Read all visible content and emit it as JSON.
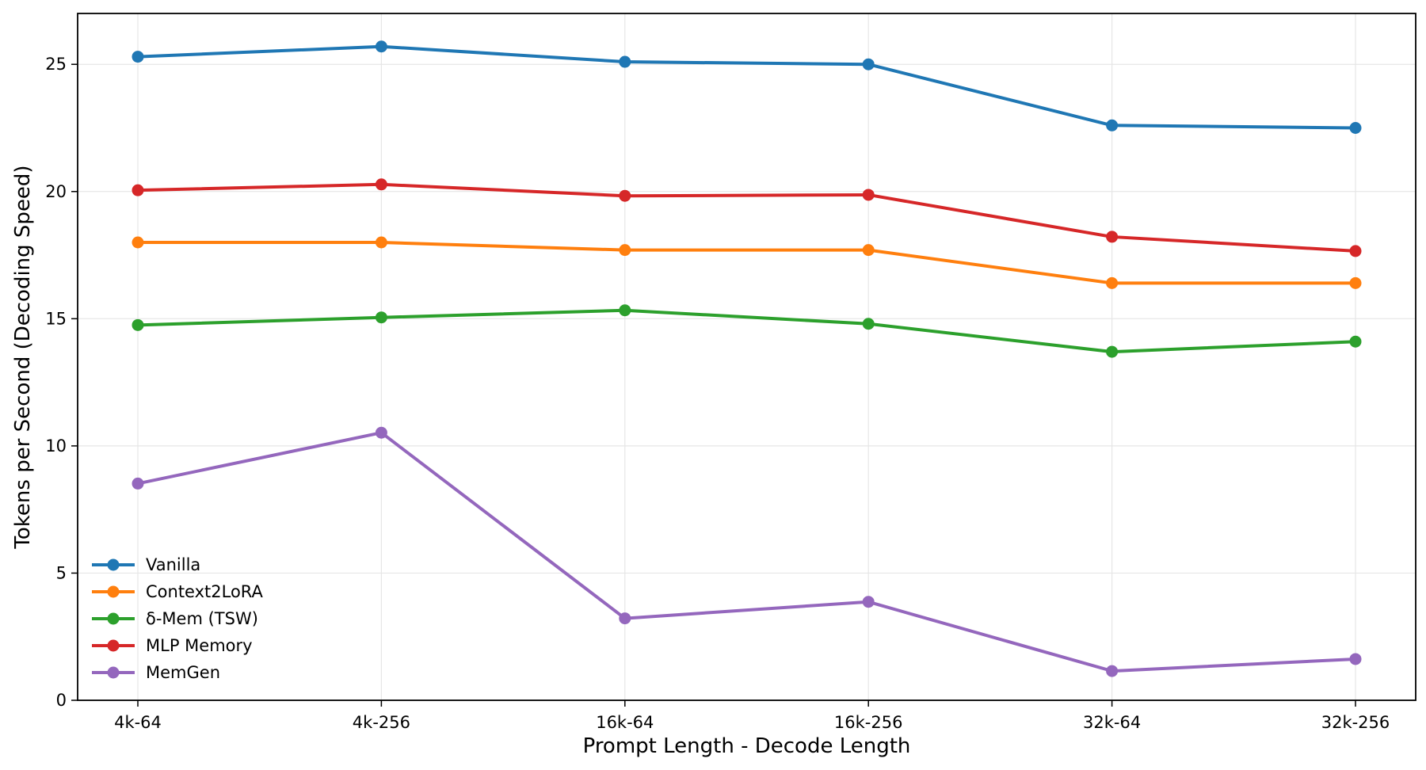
{
  "chart_data": {
    "type": "line",
    "title": "",
    "xlabel": "Prompt Length - Decode Length",
    "ylabel": "Tokens per Second (Decoding Speed)",
    "categories": [
      "4k-64",
      "4k-256",
      "16k-64",
      "16k-256",
      "32k-64",
      "32k-256"
    ],
    "ylim": [
      0,
      27
    ],
    "yticks": [
      0,
      5,
      10,
      15,
      20,
      25
    ],
    "grid": true,
    "legend_position": "lower-left",
    "series": [
      {
        "name": "Vanilla",
        "color": "#1f77b4",
        "values": [
          25.3,
          25.7,
          25.1,
          25.0,
          22.6,
          22.5
        ]
      },
      {
        "name": "Context2LoRA",
        "color": "#ff7f0e",
        "values": [
          18.0,
          18.0,
          17.7,
          17.7,
          16.4,
          16.4
        ]
      },
      {
        "name": "δ-Mem (TSW)",
        "color": "#2ca02c",
        "values": [
          14.75,
          15.05,
          15.33,
          14.8,
          13.7,
          14.1
        ]
      },
      {
        "name": "MLP Memory",
        "color": "#d62728",
        "values": [
          20.05,
          20.28,
          19.83,
          19.87,
          18.22,
          17.66
        ]
      },
      {
        "name": "MemGen",
        "color": "#9467bd",
        "values": [
          8.52,
          10.52,
          3.22,
          3.87,
          1.15,
          1.62
        ]
      }
    ]
  }
}
